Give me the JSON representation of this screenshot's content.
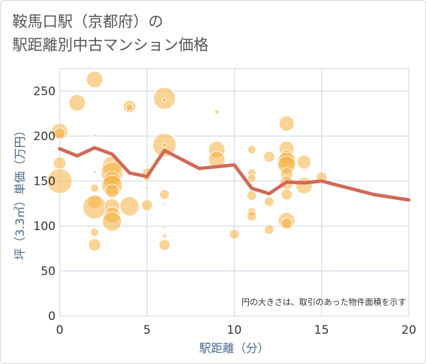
{
  "title": {
    "line1": "鞍馬口駅（京都府）の",
    "line2": "駅距離別中古マンション価格"
  },
  "chart_data": {
    "type": "scatter",
    "title": "鞍馬口駅（京都府）の駅距離別中古マンション価格",
    "xlabel": "駅距離（分）",
    "ylabel": "坪（3.3㎡）単価（万円）",
    "xlim": [
      0,
      20
    ],
    "ylim": [
      0,
      275
    ],
    "xticks": [
      0,
      5,
      10,
      15,
      20
    ],
    "yticks": [
      0,
      50,
      100,
      150,
      200,
      250
    ],
    "grid": true,
    "note": "円の大きさは、取引のあった物件面積を示す",
    "colors": {
      "bubble": "#f5b041",
      "line": "#cf6a58",
      "grid": "#c8d2dc"
    },
    "bubbles": [
      {
        "x": 0,
        "y": 205,
        "s": 12
      },
      {
        "x": 0,
        "y": 203,
        "s": 8
      },
      {
        "x": 0,
        "y": 170,
        "s": 9
      },
      {
        "x": 0,
        "y": 150,
        "s": 18
      },
      {
        "x": 1,
        "y": 237,
        "s": 12
      },
      {
        "x": 2,
        "y": 263,
        "s": 12
      },
      {
        "x": 2,
        "y": 201,
        "s": 2
      },
      {
        "x": 2,
        "y": 160,
        "s": 2
      },
      {
        "x": 2,
        "y": 142,
        "s": 6
      },
      {
        "x": 2,
        "y": 127,
        "s": 10
      },
      {
        "x": 2,
        "y": 121,
        "s": 17
      },
      {
        "x": 2,
        "y": 93,
        "s": 6
      },
      {
        "x": 2,
        "y": 79,
        "s": 9
      },
      {
        "x": 3,
        "y": 167,
        "s": 14
      },
      {
        "x": 3,
        "y": 159,
        "s": 16
      },
      {
        "x": 3,
        "y": 151,
        "s": 13
      },
      {
        "x": 3,
        "y": 145,
        "s": 15
      },
      {
        "x": 3,
        "y": 139,
        "s": 10
      },
      {
        "x": 3,
        "y": 122,
        "s": 11
      },
      {
        "x": 3,
        "y": 112,
        "s": 12
      },
      {
        "x": 3,
        "y": 105,
        "s": 14
      },
      {
        "x": 4,
        "y": 233,
        "s": 9
      },
      {
        "x": 4,
        "y": 232,
        "s": 5
      },
      {
        "x": 4,
        "y": 122,
        "s": 14
      },
      {
        "x": 5,
        "y": 159,
        "s": 7
      },
      {
        "x": 5,
        "y": 154,
        "s": 5
      },
      {
        "x": 5,
        "y": 142,
        "s": 2
      },
      {
        "x": 5,
        "y": 123,
        "s": 8
      },
      {
        "x": 6,
        "y": 242,
        "s": 16
      },
      {
        "x": 6,
        "y": 240,
        "s": 3
      },
      {
        "x": 6,
        "y": 190,
        "s": 17
      },
      {
        "x": 6,
        "y": 190,
        "s": 3
      },
      {
        "x": 6,
        "y": 135,
        "s": 7
      },
      {
        "x": 6,
        "y": 125,
        "s": 2
      },
      {
        "x": 6,
        "y": 98,
        "s": 2
      },
      {
        "x": 6,
        "y": 89,
        "s": 3
      },
      {
        "x": 6,
        "y": 79,
        "s": 8
      },
      {
        "x": 7,
        "y": 126,
        "s": 1
      },
      {
        "x": 7,
        "y": 97,
        "s": 1
      },
      {
        "x": 9,
        "y": 227,
        "s": 3
      },
      {
        "x": 9,
        "y": 185,
        "s": 12
      },
      {
        "x": 9,
        "y": 174,
        "s": 12
      },
      {
        "x": 10,
        "y": 91,
        "s": 7
      },
      {
        "x": 11,
        "y": 185,
        "s": 6
      },
      {
        "x": 11,
        "y": 159,
        "s": 6
      },
      {
        "x": 11,
        "y": 153,
        "s": 6
      },
      {
        "x": 11,
        "y": 134,
        "s": 7
      },
      {
        "x": 11,
        "y": 116,
        "s": 6
      },
      {
        "x": 11,
        "y": 111,
        "s": 7
      },
      {
        "x": 12,
        "y": 177,
        "s": 8
      },
      {
        "x": 12,
        "y": 127,
        "s": 7
      },
      {
        "x": 12,
        "y": 96,
        "s": 7
      },
      {
        "x": 13,
        "y": 214,
        "s": 11
      },
      {
        "x": 13,
        "y": 186,
        "s": 11
      },
      {
        "x": 13,
        "y": 176,
        "s": 11
      },
      {
        "x": 13,
        "y": 172,
        "s": 13
      },
      {
        "x": 13,
        "y": 168,
        "s": 13
      },
      {
        "x": 13,
        "y": 158,
        "s": 9
      },
      {
        "x": 13,
        "y": 148,
        "s": 10
      },
      {
        "x": 13,
        "y": 135,
        "s": 8
      },
      {
        "x": 13,
        "y": 106,
        "s": 12
      },
      {
        "x": 13,
        "y": 103,
        "s": 8
      },
      {
        "x": 14,
        "y": 171,
        "s": 10
      },
      {
        "x": 14,
        "y": 145,
        "s": 12
      },
      {
        "x": 15,
        "y": 154,
        "s": 8
      }
    ],
    "line": {
      "x": [
        0,
        1,
        2,
        3,
        4,
        5,
        6,
        7,
        8,
        9,
        10,
        11,
        12,
        13,
        14,
        15,
        16,
        17,
        18,
        19,
        20
      ],
      "y": [
        186,
        178,
        187,
        180,
        159,
        155,
        184,
        174,
        164,
        166,
        168,
        142,
        136,
        149,
        148,
        150,
        145,
        140,
        135,
        132,
        129
      ]
    }
  }
}
